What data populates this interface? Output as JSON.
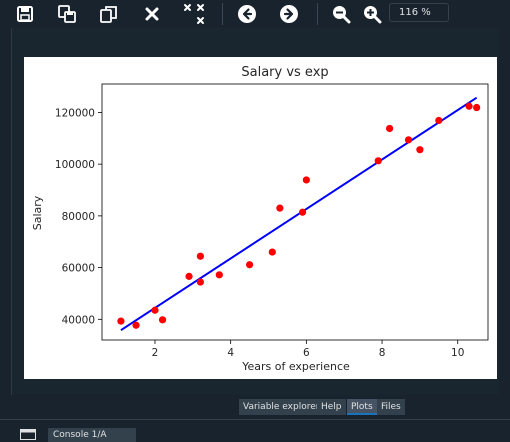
{
  "toolbar": {
    "zoom_value": "116 %"
  },
  "chart_data": {
    "type": "scatter",
    "title": "Salary vs exp",
    "xlabel": "Years of experience",
    "ylabel": "Salary",
    "xlim": [
      0.6,
      10.8
    ],
    "ylim": [
      32000,
      131000
    ],
    "xticks": [
      2,
      4,
      6,
      8,
      10
    ],
    "yticks": [
      40000,
      60000,
      80000,
      100000,
      120000
    ],
    "xtick_labels": [
      "2",
      "4",
      "6",
      "8",
      "10"
    ],
    "ytick_labels": [
      "40000",
      "60000",
      "80000",
      "100000",
      "120000"
    ],
    "point_color": "#ff0000",
    "line_color": "#0000ff",
    "points": [
      {
        "x": 1.1,
        "y": 39300
      },
      {
        "x": 1.5,
        "y": 37700
      },
      {
        "x": 2.0,
        "y": 43500
      },
      {
        "x": 2.2,
        "y": 39800
      },
      {
        "x": 2.9,
        "y": 56600
      },
      {
        "x": 3.2,
        "y": 64400
      },
      {
        "x": 3.2,
        "y": 54400
      },
      {
        "x": 3.7,
        "y": 57200
      },
      {
        "x": 4.5,
        "y": 61100
      },
      {
        "x": 5.1,
        "y": 66000
      },
      {
        "x": 5.3,
        "y": 83000
      },
      {
        "x": 5.9,
        "y": 81400
      },
      {
        "x": 6.0,
        "y": 93900
      },
      {
        "x": 7.9,
        "y": 101300
      },
      {
        "x": 8.2,
        "y": 113800
      },
      {
        "x": 8.7,
        "y": 109400
      },
      {
        "x": 9.0,
        "y": 105600
      },
      {
        "x": 9.5,
        "y": 116900
      },
      {
        "x": 10.3,
        "y": 122400
      },
      {
        "x": 10.5,
        "y": 121900
      }
    ],
    "fit_line": {
      "x": [
        1.1,
        10.5
      ],
      "y": [
        35800,
        125700
      ]
    }
  },
  "tabs": [
    {
      "label": "Variable explorer",
      "active": false
    },
    {
      "label": "Help",
      "active": false
    },
    {
      "label": "Plots",
      "active": true
    },
    {
      "label": "Files",
      "active": false
    }
  ],
  "bottom": {
    "console_tab_label": "Console 1/A"
  },
  "colors": {
    "background": "#19232d",
    "accent": "#1a72bb"
  }
}
